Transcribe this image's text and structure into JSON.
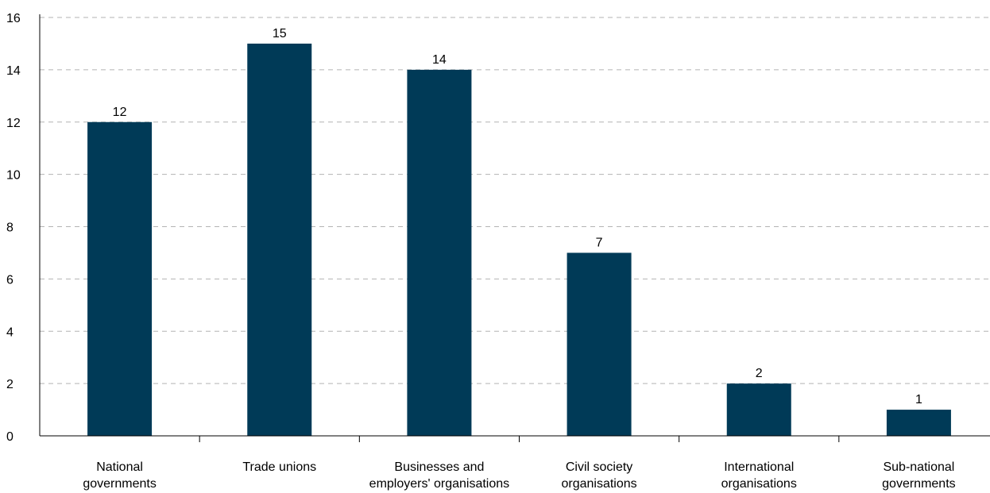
{
  "chart_data": {
    "type": "bar",
    "categories": [
      [
        "National",
        "governments"
      ],
      [
        "Trade unions"
      ],
      [
        "Businesses and",
        "employers' organisations"
      ],
      [
        "Civil society",
        "organisations"
      ],
      [
        "International",
        "organisations"
      ],
      [
        "Sub-national",
        "governments"
      ]
    ],
    "values": [
      12,
      15,
      14,
      7,
      2,
      1
    ],
    "y_ticks": [
      "0",
      "2",
      "4",
      "6",
      "8",
      "10",
      "12",
      "14",
      "16"
    ],
    "ylim": [
      0,
      16
    ],
    "grid": true,
    "legend": "none",
    "bar_color": "#003a57",
    "grid_color": "#b3b3b3",
    "title": "",
    "xlabel": "",
    "ylabel": ""
  }
}
